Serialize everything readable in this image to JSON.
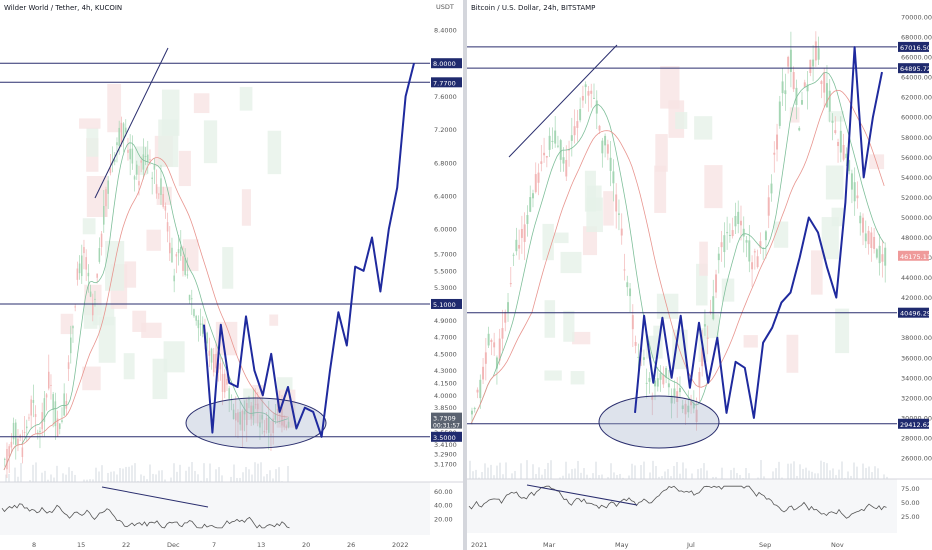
{
  "left": {
    "title": "Wilder World / Tether, 4h, KUCOIN",
    "y_unit_label": "USDT",
    "ticks": [
      "8.4000",
      "7.6000",
      "7.2000",
      "6.8000",
      "6.4000",
      "6.0000",
      "5.7000",
      "5.5000",
      "5.3000",
      "4.9000",
      "4.7000",
      "4.5000",
      "4.3000",
      "4.1500",
      "4.0000",
      "3.8500",
      "3.5500",
      "3.4100",
      "3.2900",
      "3.1700"
    ],
    "price_labels": [
      "8.0000",
      "7.7700",
      "5.1000",
      "3.5000"
    ],
    "current_price": "3.7309",
    "countdown": "00:31:57",
    "x_ticks": [
      "8",
      "15",
      "22",
      "Dec",
      "7",
      "13",
      "20",
      "26",
      "2022"
    ],
    "rsi_ticks": [
      "60.00",
      "40.00",
      "20.00"
    ],
    "chart_data": {
      "type": "line",
      "title": "Wilder World / Tether, 4h, KUCOIN",
      "ylabel": "USDT",
      "ylim": [
        3.1,
        8.4
      ],
      "hlines": [
        8.0,
        7.77,
        5.1,
        3.5
      ],
      "series": [
        {
          "values": [
            3.1,
            3.6,
            3.4,
            3.9,
            3.5,
            4.2,
            3.6,
            4.0,
            5.3,
            5.7,
            4.9,
            6.0,
            6.8,
            7.2,
            7.0,
            6.6,
            7.0,
            6.6,
            6.4,
            5.5,
            5.7,
            5.2,
            4.9,
            4.6,
            4.3,
            4.1,
            3.8,
            3.7,
            3.9,
            3.7,
            3.6,
            3.8,
            3.7
          ]
        },
        {
          "values": [
            4.85,
            3.55,
            4.85,
            4.15,
            4.1,
            4.95,
            4.3,
            4.0,
            4.5,
            3.8,
            4.1,
            3.6,
            3.85,
            3.8,
            3.5,
            4.3,
            5.0,
            4.6,
            5.55,
            5.5,
            5.9,
            5.25,
            6.0,
            6.5,
            7.6,
            8.0
          ]
        }
      ]
    }
  },
  "right": {
    "title": "Bitcoin / U.S. Dollar, 24h, BITSTAMP",
    "ticks": [
      "70000.00",
      "68000.00",
      "66000.00",
      "64000.00",
      "62000.00",
      "60000.00",
      "58000.00",
      "56000.00",
      "54000.00",
      "52000.00",
      "50000.00",
      "48000.00",
      "46000.00",
      "44000.00",
      "42000.00",
      "38000.00",
      "36000.00",
      "34000.00",
      "32000.00",
      "30000.00",
      "28000.00",
      "26000.00"
    ],
    "price_labels": [
      "67016.50",
      "64895.72",
      "40496.29",
      "29412.62"
    ],
    "current_price": "46175.11",
    "x_ticks": [
      "2021",
      "Mar",
      "May",
      "Jul",
      "Sep",
      "Nov"
    ],
    "rsi_ticks": [
      "75.00",
      "50.00",
      "25.00"
    ],
    "chart_data": {
      "type": "line",
      "title": "Bitcoin / U.S. Dollar, 24h, BITSTAMP",
      "ylim": [
        25000,
        70500
      ],
      "hlines": [
        67016.5,
        64895.72,
        40496.29,
        29412.62
      ],
      "series": [
        {
          "values": [
            29400,
            33000,
            38000,
            36000,
            40000,
            47000,
            48000,
            52000,
            55000,
            57000,
            58000,
            55000,
            59000,
            62000,
            63000,
            58000,
            56000,
            50000,
            44000,
            38000,
            35000,
            33000,
            35000,
            33000,
            32000,
            31000,
            30000,
            38000,
            41000,
            47000,
            48000,
            50000,
            47000,
            45000,
            48000,
            55000,
            62000,
            66000,
            60000,
            64000,
            67000,
            63000,
            60000,
            57000,
            54000,
            50000,
            48000,
            47000,
            46175
          ]
        },
        {
          "values": [
            30500,
            40200,
            33500,
            40000,
            34000,
            40200,
            33000,
            39500,
            33500,
            38000,
            30500,
            35600,
            35000,
            30000,
            37500,
            39000,
            41500,
            42500,
            46000,
            50000,
            48500,
            45000,
            42000,
            51500,
            67000,
            54000,
            60000,
            64500
          ]
        }
      ]
    }
  }
}
